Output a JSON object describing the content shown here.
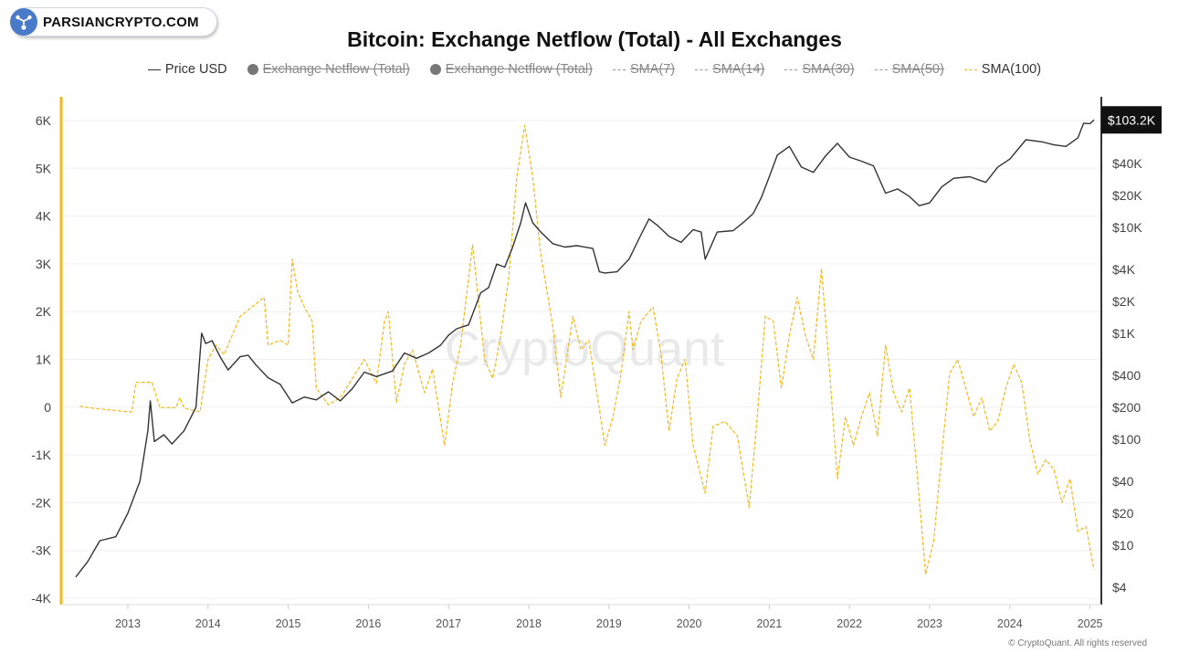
{
  "badge": {
    "label": "PARSIANCRYPTO.COM",
    "icon": "fork-network-icon",
    "color": "#4a7bc8"
  },
  "chart_data": {
    "type": "line",
    "title": "Bitcoin: Exchange Netflow (Total) - All Exchanges",
    "watermark": "CryptoQuant",
    "copyright": "© CryptoQuant. All rights reserved",
    "legend": [
      {
        "label": "Price USD",
        "style": "solid",
        "color": "#333333",
        "enabled": true
      },
      {
        "label": "Exchange Netflow (Total)",
        "style": "dot",
        "color": "#777777",
        "enabled": false
      },
      {
        "label": "Exchange Netflow (Total)",
        "style": "dot",
        "color": "#777777",
        "enabled": false
      },
      {
        "label": "SMA(7)",
        "style": "dashed",
        "color": "#999999",
        "enabled": false
      },
      {
        "label": "SMA(14)",
        "style": "dashed",
        "color": "#999999",
        "enabled": false
      },
      {
        "label": "SMA(30)",
        "style": "dashed",
        "color": "#999999",
        "enabled": false
      },
      {
        "label": "SMA(50)",
        "style": "dashed",
        "color": "#999999",
        "enabled": false
      },
      {
        "label": "SMA(100)",
        "style": "dashed",
        "color": "#f4b81c",
        "enabled": true
      }
    ],
    "x_ticks": [
      "2013",
      "2014",
      "2015",
      "2016",
      "2017",
      "2018",
      "2019",
      "2020",
      "2021",
      "2022",
      "2023",
      "2024",
      "2025"
    ],
    "x_range": [
      2012.3,
      2025.1
    ],
    "y_left": {
      "ticks": [
        6000,
        5000,
        4000,
        3000,
        2000,
        1000,
        0,
        -1000,
        -2000,
        -3000,
        -4000
      ],
      "tick_labels": [
        "6K",
        "5K",
        "4K",
        "3K",
        "2K",
        "1K",
        "0",
        "-1K",
        "-2K",
        "-3K",
        "-4K"
      ],
      "range": [
        -4000,
        6200
      ]
    },
    "y_right": {
      "scale": "log",
      "ticks": [
        40000,
        20000,
        10000,
        4000,
        2000,
        1000,
        400,
        200,
        100,
        40,
        20,
        10,
        4
      ],
      "tick_labels": [
        "$40K",
        "$20K",
        "$10K",
        "$4K",
        "$2K",
        "$1K",
        "$400",
        "$200",
        "$100",
        "$40",
        "$20",
        "$10",
        "$4"
      ],
      "range": [
        3,
        120000
      ]
    },
    "current_price_label": "$103.2K",
    "series": [
      {
        "name": "Price USD",
        "axis": "right",
        "color": "#333333",
        "points": [
          [
            2012.35,
            5
          ],
          [
            2012.5,
            7
          ],
          [
            2012.65,
            11
          ],
          [
            2012.85,
            12
          ],
          [
            2013.0,
            20
          ],
          [
            2013.15,
            40
          ],
          [
            2013.25,
            120
          ],
          [
            2013.28,
            230
          ],
          [
            2013.33,
            95
          ],
          [
            2013.45,
            110
          ],
          [
            2013.55,
            90
          ],
          [
            2013.7,
            120
          ],
          [
            2013.85,
            200
          ],
          [
            2013.92,
            1000
          ],
          [
            2013.97,
            800
          ],
          [
            2014.05,
            850
          ],
          [
            2014.15,
            600
          ],
          [
            2014.25,
            450
          ],
          [
            2014.4,
            600
          ],
          [
            2014.5,
            620
          ],
          [
            2014.6,
            500
          ],
          [
            2014.75,
            380
          ],
          [
            2014.9,
            330
          ],
          [
            2015.05,
            220
          ],
          [
            2015.2,
            250
          ],
          [
            2015.35,
            235
          ],
          [
            2015.5,
            280
          ],
          [
            2015.65,
            230
          ],
          [
            2015.8,
            300
          ],
          [
            2015.95,
            430
          ],
          [
            2016.1,
            390
          ],
          [
            2016.3,
            440
          ],
          [
            2016.45,
            650
          ],
          [
            2016.6,
            580
          ],
          [
            2016.75,
            650
          ],
          [
            2016.9,
            770
          ],
          [
            2017.0,
            960
          ],
          [
            2017.1,
            1100
          ],
          [
            2017.25,
            1200
          ],
          [
            2017.4,
            2400
          ],
          [
            2017.5,
            2700
          ],
          [
            2017.6,
            4500
          ],
          [
            2017.7,
            4200
          ],
          [
            2017.8,
            6500
          ],
          [
            2017.9,
            11000
          ],
          [
            2017.96,
            17000
          ],
          [
            2018.05,
            11000
          ],
          [
            2018.15,
            9000
          ],
          [
            2018.3,
            7000
          ],
          [
            2018.45,
            6500
          ],
          [
            2018.6,
            6700
          ],
          [
            2018.8,
            6300
          ],
          [
            2018.88,
            3800
          ],
          [
            2018.95,
            3700
          ],
          [
            2019.1,
            3800
          ],
          [
            2019.25,
            5000
          ],
          [
            2019.4,
            8500
          ],
          [
            2019.5,
            12000
          ],
          [
            2019.6,
            10500
          ],
          [
            2019.75,
            8200
          ],
          [
            2019.9,
            7200
          ],
          [
            2020.05,
            9500
          ],
          [
            2020.15,
            9000
          ],
          [
            2020.2,
            5000
          ],
          [
            2020.35,
            9000
          ],
          [
            2020.55,
            9300
          ],
          [
            2020.7,
            11500
          ],
          [
            2020.8,
            13500
          ],
          [
            2020.9,
            19000
          ],
          [
            2021.0,
            30000
          ],
          [
            2021.1,
            48000
          ],
          [
            2021.25,
            58000
          ],
          [
            2021.4,
            37000
          ],
          [
            2021.55,
            33000
          ],
          [
            2021.7,
            47000
          ],
          [
            2021.85,
            62000
          ],
          [
            2022.0,
            46000
          ],
          [
            2022.15,
            42000
          ],
          [
            2022.3,
            38000
          ],
          [
            2022.45,
            21000
          ],
          [
            2022.6,
            23000
          ],
          [
            2022.75,
            19500
          ],
          [
            2022.87,
            16000
          ],
          [
            2023.0,
            17000
          ],
          [
            2023.15,
            24000
          ],
          [
            2023.3,
            29000
          ],
          [
            2023.5,
            30000
          ],
          [
            2023.7,
            26500
          ],
          [
            2023.85,
            37000
          ],
          [
            2024.0,
            44000
          ],
          [
            2024.2,
            67000
          ],
          [
            2024.4,
            64000
          ],
          [
            2024.55,
            60000
          ],
          [
            2024.7,
            58000
          ],
          [
            2024.85,
            70000
          ],
          [
            2024.92,
            96000
          ],
          [
            2025.0,
            95000
          ],
          [
            2025.05,
            103200
          ]
        ]
      },
      {
        "name": "SMA(100)",
        "axis": "left",
        "color": "#f4b81c",
        "points": [
          [
            2012.4,
            20
          ],
          [
            2012.6,
            -30
          ],
          [
            2012.8,
            -60
          ],
          [
            2012.95,
            -90
          ],
          [
            2013.05,
            -100
          ],
          [
            2013.1,
            520
          ],
          [
            2013.3,
            520
          ],
          [
            2013.4,
            -10
          ],
          [
            2013.6,
            -10
          ],
          [
            2013.65,
            200
          ],
          [
            2013.7,
            -20
          ],
          [
            2013.9,
            -100
          ],
          [
            2014.0,
            1000
          ],
          [
            2014.1,
            1300
          ],
          [
            2014.2,
            1100
          ],
          [
            2014.3,
            1500
          ],
          [
            2014.4,
            1900
          ],
          [
            2014.55,
            2100
          ],
          [
            2014.7,
            2300
          ],
          [
            2014.75,
            1300
          ],
          [
            2014.9,
            1400
          ],
          [
            2015.0,
            1300
          ],
          [
            2015.05,
            3100
          ],
          [
            2015.12,
            2400
          ],
          [
            2015.2,
            2100
          ],
          [
            2015.3,
            1800
          ],
          [
            2015.35,
            400
          ],
          [
            2015.5,
            50
          ],
          [
            2015.65,
            200
          ],
          [
            2015.8,
            600
          ],
          [
            2015.95,
            1000
          ],
          [
            2016.1,
            500
          ],
          [
            2016.2,
            1800
          ],
          [
            2016.25,
            2000
          ],
          [
            2016.35,
            100
          ],
          [
            2016.45,
            900
          ],
          [
            2016.55,
            1200
          ],
          [
            2016.7,
            300
          ],
          [
            2016.8,
            800
          ],
          [
            2016.95,
            -800
          ],
          [
            2017.05,
            500
          ],
          [
            2017.15,
            1300
          ],
          [
            2017.3,
            3400
          ],
          [
            2017.45,
            1000
          ],
          [
            2017.55,
            600
          ],
          [
            2017.65,
            1500
          ],
          [
            2017.75,
            2700
          ],
          [
            2017.85,
            4800
          ],
          [
            2017.95,
            5900
          ],
          [
            2018.05,
            4800
          ],
          [
            2018.15,
            3200
          ],
          [
            2018.3,
            1700
          ],
          [
            2018.4,
            200
          ],
          [
            2018.55,
            1900
          ],
          [
            2018.65,
            1200
          ],
          [
            2018.75,
            1400
          ],
          [
            2018.85,
            300
          ],
          [
            2018.95,
            -800
          ],
          [
            2019.05,
            -200
          ],
          [
            2019.15,
            700
          ],
          [
            2019.25,
            2000
          ],
          [
            2019.3,
            1200
          ],
          [
            2019.4,
            1800
          ],
          [
            2019.55,
            2100
          ],
          [
            2019.65,
            1100
          ],
          [
            2019.75,
            -500
          ],
          [
            2019.85,
            600
          ],
          [
            2019.95,
            1000
          ],
          [
            2020.05,
            -800
          ],
          [
            2020.2,
            -1800
          ],
          [
            2020.3,
            -400
          ],
          [
            2020.45,
            -300
          ],
          [
            2020.6,
            -600
          ],
          [
            2020.75,
            -2100
          ],
          [
            2020.85,
            -200
          ],
          [
            2020.95,
            1900
          ],
          [
            2021.05,
            1800
          ],
          [
            2021.15,
            400
          ],
          [
            2021.25,
            1500
          ],
          [
            2021.35,
            2300
          ],
          [
            2021.45,
            1500
          ],
          [
            2021.55,
            1000
          ],
          [
            2021.65,
            2900
          ],
          [
            2021.75,
            800
          ],
          [
            2021.85,
            -1500
          ],
          [
            2021.95,
            -200
          ],
          [
            2022.05,
            -800
          ],
          [
            2022.15,
            -200
          ],
          [
            2022.25,
            300
          ],
          [
            2022.35,
            -600
          ],
          [
            2022.45,
            1300
          ],
          [
            2022.55,
            300
          ],
          [
            2022.65,
            -100
          ],
          [
            2022.75,
            400
          ],
          [
            2022.85,
            -1500
          ],
          [
            2022.95,
            -3500
          ],
          [
            2023.05,
            -2800
          ],
          [
            2023.15,
            -1000
          ],
          [
            2023.25,
            700
          ],
          [
            2023.35,
            1000
          ],
          [
            2023.45,
            400
          ],
          [
            2023.55,
            -200
          ],
          [
            2023.65,
            200
          ],
          [
            2023.75,
            -500
          ],
          [
            2023.85,
            -300
          ],
          [
            2023.95,
            400
          ],
          [
            2024.05,
            900
          ],
          [
            2024.15,
            500
          ],
          [
            2024.25,
            -700
          ],
          [
            2024.35,
            -1400
          ],
          [
            2024.45,
            -1100
          ],
          [
            2024.55,
            -1300
          ],
          [
            2024.65,
            -2000
          ],
          [
            2024.75,
            -1500
          ],
          [
            2024.85,
            -2600
          ],
          [
            2024.95,
            -2500
          ],
          [
            2025.05,
            -3400
          ]
        ]
      }
    ]
  }
}
